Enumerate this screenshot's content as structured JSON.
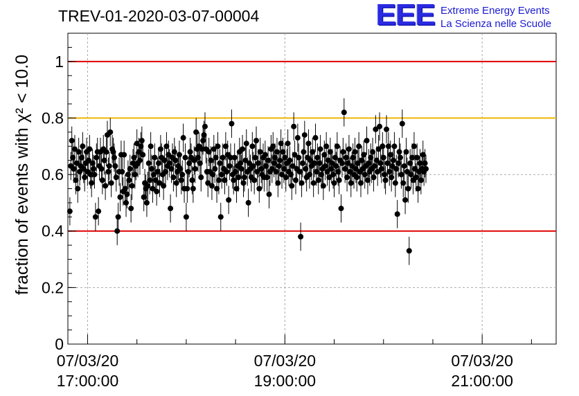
{
  "title": "TREV-01-2020-03-07-00004",
  "logo": {
    "mark": "EEE",
    "line1": "Extreme Energy Events",
    "line2": "La Scienza nelle Scuole",
    "color": "#2a2ae0"
  },
  "chart_data": {
    "type": "scatter",
    "title": "TREV-01-2020-03-07-00004",
    "ylabel": "fraction of events with χ² < 10.0",
    "xlabel": "",
    "ylim": [
      0,
      1.1
    ],
    "y_ticks": [
      "0",
      "0.2",
      "0.4",
      "0.6",
      "0.8",
      "1"
    ],
    "x_tick_labels": [
      {
        "date": "07/03/20",
        "time": "17:00:00"
      },
      {
        "date": "07/03/20",
        "time": "19:00:00"
      },
      {
        "date": "07/03/20",
        "time": "21:00:00"
      }
    ],
    "xlim_hours": [
      16.8,
      21.75
    ],
    "grid": true,
    "reference_lines": [
      {
        "y": 1.0,
        "color": "#e00000"
      },
      {
        "y": 0.8,
        "color": "#f0b400"
      },
      {
        "y": 0.4,
        "color": "#e00000"
      }
    ],
    "series": [
      {
        "x_start_hour": 16.82,
        "x_step_minutes": 0.6,
        "error": 0.05,
        "values": [
          0.47,
          0.63,
          0.72,
          0.66,
          0.62,
          0.69,
          0.58,
          0.64,
          0.55,
          0.68,
          0.61,
          0.63,
          0.66,
          0.7,
          0.62,
          0.59,
          0.64,
          0.68,
          0.61,
          0.65,
          0.69,
          0.6,
          0.57,
          0.64,
          0.62,
          0.6,
          0.45,
          0.66,
          0.68,
          0.47,
          0.63,
          0.68,
          0.62,
          0.58,
          0.69,
          0.65,
          0.56,
          0.68,
          0.74,
          0.61,
          0.63,
          0.75,
          0.57,
          0.69,
          0.68,
          0.66,
          0.63,
          0.59,
          0.4,
          0.45,
          0.61,
          0.52,
          0.67,
          0.61,
          0.54,
          0.67,
          0.55,
          0.5,
          0.53,
          0.6,
          0.58,
          0.62,
          0.48,
          0.56,
          0.64,
          0.66,
          0.6,
          0.63,
          0.71,
          0.64,
          0.68,
          0.65,
          0.7,
          0.72,
          0.67,
          0.52,
          0.57,
          0.55,
          0.5,
          0.56,
          0.64,
          0.58,
          0.7,
          0.62,
          0.55,
          0.6,
          0.66,
          0.58,
          0.54,
          0.61,
          0.64,
          0.57,
          0.69,
          0.66,
          0.6,
          0.56,
          0.65,
          0.61,
          0.7,
          0.63,
          0.67,
          0.64,
          0.48,
          0.62,
          0.66,
          0.59,
          0.68,
          0.65,
          0.57,
          0.61,
          0.63,
          0.67,
          0.62,
          0.58,
          0.6,
          0.73,
          0.55,
          0.66,
          0.45,
          0.55,
          0.61,
          0.64,
          0.68,
          0.66,
          0.58,
          0.55,
          0.65,
          0.62,
          0.75,
          0.69,
          0.66,
          0.7,
          0.64,
          0.59,
          0.69,
          0.72,
          0.74,
          0.77,
          0.69,
          0.61,
          0.57,
          0.68,
          0.61,
          0.65,
          0.56,
          0.6,
          0.69,
          0.62,
          0.66,
          0.55,
          0.7,
          0.58,
          0.64,
          0.45,
          0.6,
          0.66,
          0.62,
          0.58,
          0.7,
          0.61,
          0.67,
          0.51,
          0.63,
          0.66,
          0.78,
          0.6,
          0.58,
          0.66,
          0.61,
          0.55,
          0.63,
          0.59,
          0.68,
          0.64,
          0.62,
          0.69,
          0.57,
          0.59,
          0.65,
          0.71,
          0.61,
          0.5,
          0.64,
          0.62,
          0.59,
          0.7,
          0.63,
          0.58,
          0.66,
          0.72,
          0.61,
          0.64,
          0.55,
          0.68,
          0.62,
          0.6,
          0.66,
          0.59,
          0.67,
          0.63,
          0.59,
          0.65,
          0.53,
          0.61,
          0.69,
          0.62,
          0.7,
          0.64,
          0.66,
          0.61,
          0.68,
          0.57,
          0.63,
          0.65,
          0.71,
          0.6,
          0.68,
          0.62,
          0.66,
          0.59,
          0.64,
          0.71,
          0.61,
          0.65,
          0.6,
          0.56,
          0.63,
          0.77,
          0.67,
          0.58,
          0.62,
          0.73,
          0.66,
          0.61,
          0.38,
          0.57,
          0.64,
          0.68,
          0.74,
          0.62,
          0.59,
          0.66,
          0.71,
          0.6,
          0.65,
          0.63,
          0.68,
          0.57,
          0.64,
          0.73,
          0.61,
          0.66,
          0.58,
          0.64,
          0.69,
          0.6,
          0.62,
          0.56,
          0.67,
          0.63,
          0.7,
          0.61,
          0.65,
          0.59,
          0.68,
          0.62,
          0.64,
          0.6,
          0.57,
          0.66,
          0.63,
          0.7,
          0.61,
          0.58,
          0.65,
          0.48,
          0.64,
          0.68,
          0.82,
          0.62,
          0.66,
          0.59,
          0.64,
          0.69,
          0.61,
          0.57,
          0.63,
          0.66,
          0.6,
          0.68,
          0.62,
          0.59,
          0.64,
          0.7,
          0.61,
          0.57,
          0.65,
          0.62,
          0.67,
          0.6,
          0.63,
          0.72,
          0.58,
          0.64,
          0.61,
          0.66,
          0.62,
          0.68,
          0.59,
          0.63,
          0.76,
          0.65,
          0.61,
          0.69,
          0.77,
          0.64,
          0.62,
          0.7,
          0.66,
          0.6,
          0.58,
          0.76,
          0.64,
          0.7,
          0.61,
          0.67,
          0.59,
          0.63,
          0.65,
          0.7,
          0.57,
          0.62,
          0.46,
          0.64,
          0.68,
          0.66,
          0.6,
          0.78,
          0.57,
          0.63,
          0.51,
          0.68,
          0.61,
          0.55,
          0.33,
          0.64,
          0.6,
          0.66,
          0.58,
          0.7,
          0.62,
          0.59,
          0.66,
          0.55,
          0.61,
          0.64,
          0.58,
          0.62,
          0.67,
          0.61,
          0.64,
          0.62
        ]
      }
    ]
  }
}
